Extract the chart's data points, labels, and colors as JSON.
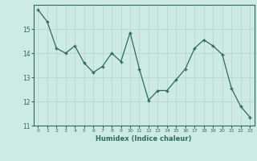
{
  "x": [
    0,
    1,
    2,
    3,
    4,
    5,
    6,
    7,
    8,
    9,
    10,
    11,
    12,
    13,
    14,
    15,
    16,
    17,
    18,
    19,
    20,
    21,
    22,
    23
  ],
  "y": [
    15.8,
    15.3,
    14.2,
    14.0,
    14.3,
    13.6,
    13.2,
    13.45,
    14.0,
    13.65,
    14.85,
    13.35,
    12.05,
    12.45,
    12.45,
    12.9,
    13.35,
    14.2,
    14.55,
    14.3,
    13.95,
    12.55,
    11.8,
    11.35
  ],
  "line_color": "#2e6b5e",
  "marker": "+",
  "marker_size": 3,
  "xlabel": "Humidex (Indice chaleur)",
  "ylim": [
    11,
    16
  ],
  "xlim": [
    -0.5,
    23.5
  ],
  "yticks": [
    11,
    12,
    13,
    14,
    15
  ],
  "xticks": [
    0,
    1,
    2,
    3,
    4,
    5,
    6,
    7,
    8,
    9,
    10,
    11,
    12,
    13,
    14,
    15,
    16,
    17,
    18,
    19,
    20,
    21,
    22,
    23
  ],
  "bg_color": "#cdeae5",
  "grid_color": "#b8d8d3",
  "tick_color": "#2e6b5e",
  "spine_color": "#2e6b5e"
}
